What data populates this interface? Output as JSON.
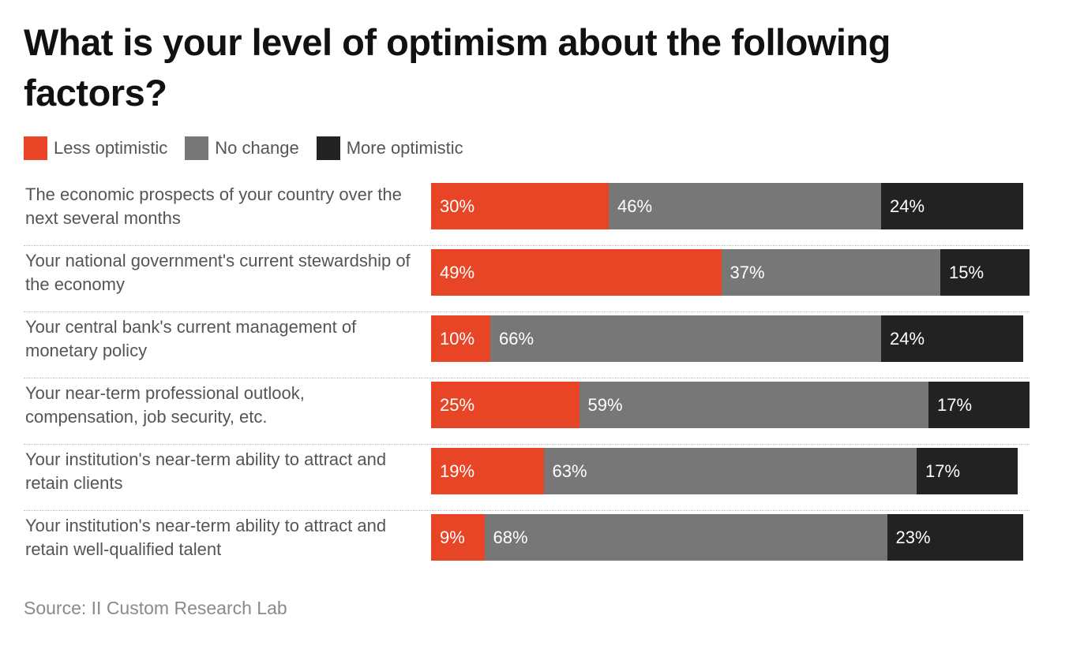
{
  "title": "What is your level of optimism about the following factors?",
  "source": "Source: II Custom Research Lab",
  "colors": {
    "less": "#e84526",
    "nochange": "#777777",
    "more": "#222222"
  },
  "chart_data": {
    "type": "bar",
    "orientation": "horizontal",
    "stacked": true,
    "title": "What is your level of optimism about the following factors?",
    "categories": [
      "The economic prospects of your country over the next several months",
      "Your national government's current stewardship of the economy",
      "Your central bank's current management of monetary policy",
      "Your near-term professional outlook, compensation, job security, etc.",
      "Your institution's near-term ability to attract and retain clients",
      "Your institution's near-term ability to attract and retain well-qualified talent"
    ],
    "series": [
      {
        "name": "Less optimistic",
        "color": "#e84526",
        "values": [
          30,
          49,
          10,
          25,
          19,
          9
        ]
      },
      {
        "name": "No change",
        "color": "#777777",
        "values": [
          46,
          37,
          66,
          59,
          63,
          68
        ]
      },
      {
        "name": "More optimistic",
        "color": "#222222",
        "values": [
          24,
          15,
          24,
          17,
          17,
          23
        ]
      }
    ],
    "unit": "%",
    "legend_position": "top-left",
    "grid": false
  }
}
